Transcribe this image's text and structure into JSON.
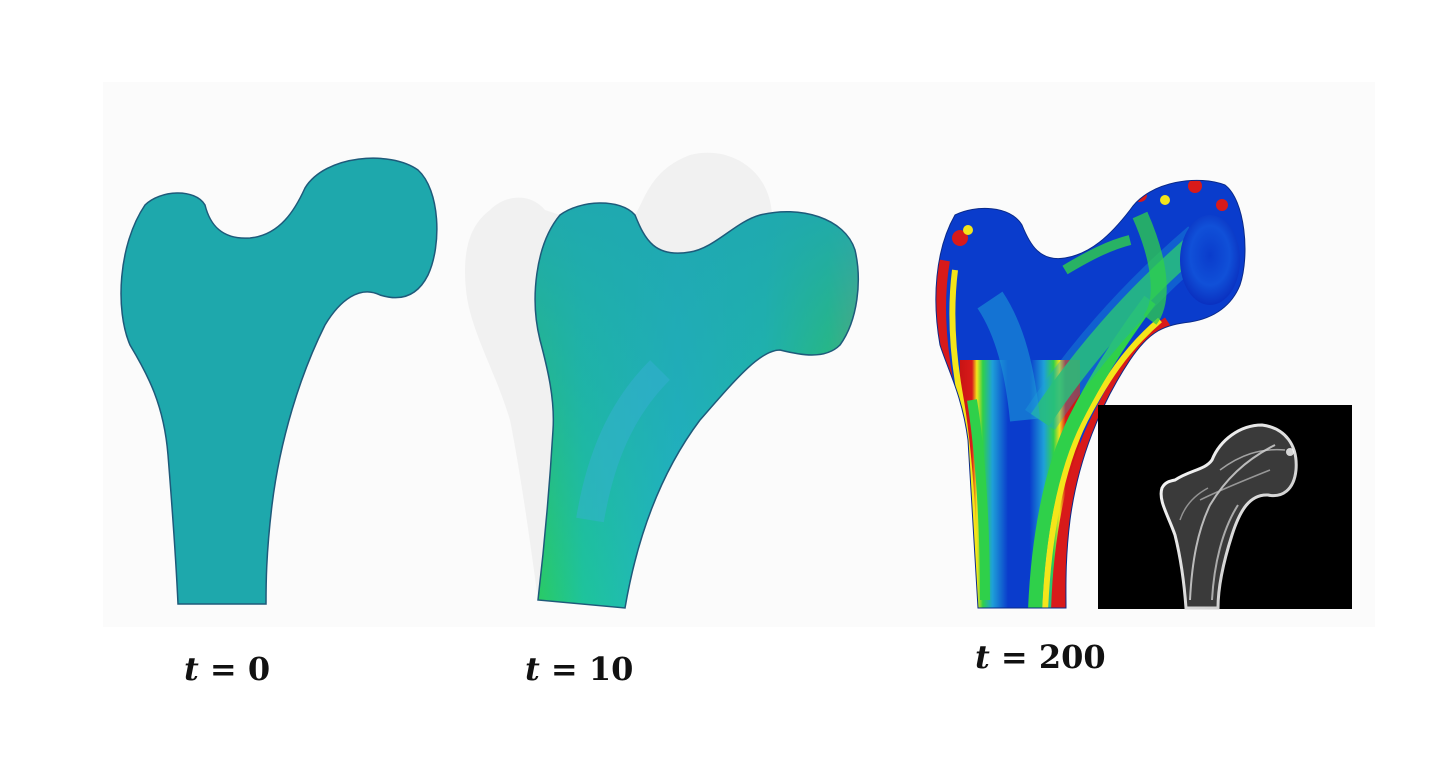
{
  "panels": [
    {
      "id": "t0",
      "variable": "t",
      "operator": "=",
      "value": "0",
      "label": "t = 0",
      "coloring": "uniform"
    },
    {
      "id": "t10",
      "variable": "t",
      "operator": "=",
      "value": "10",
      "label": "t = 10",
      "coloring": "partial-gradient"
    },
    {
      "id": "t200",
      "variable": "t",
      "operator": "=",
      "value": "200",
      "label": "t = 200",
      "coloring": "converged-gradient"
    }
  ],
  "inset": {
    "description_icon": "bone-radiograph-icon",
    "background": "#000000"
  },
  "colors": {
    "uniform": "#1ea8ac",
    "low": "#0a2fc4",
    "mid_low": "#1e9ad0",
    "mid": "#1fd27a",
    "mid_high": "#f4e51a",
    "high": "#d81a1a",
    "ghost": "#f1f1f1",
    "edge": "#1e5a7a"
  }
}
